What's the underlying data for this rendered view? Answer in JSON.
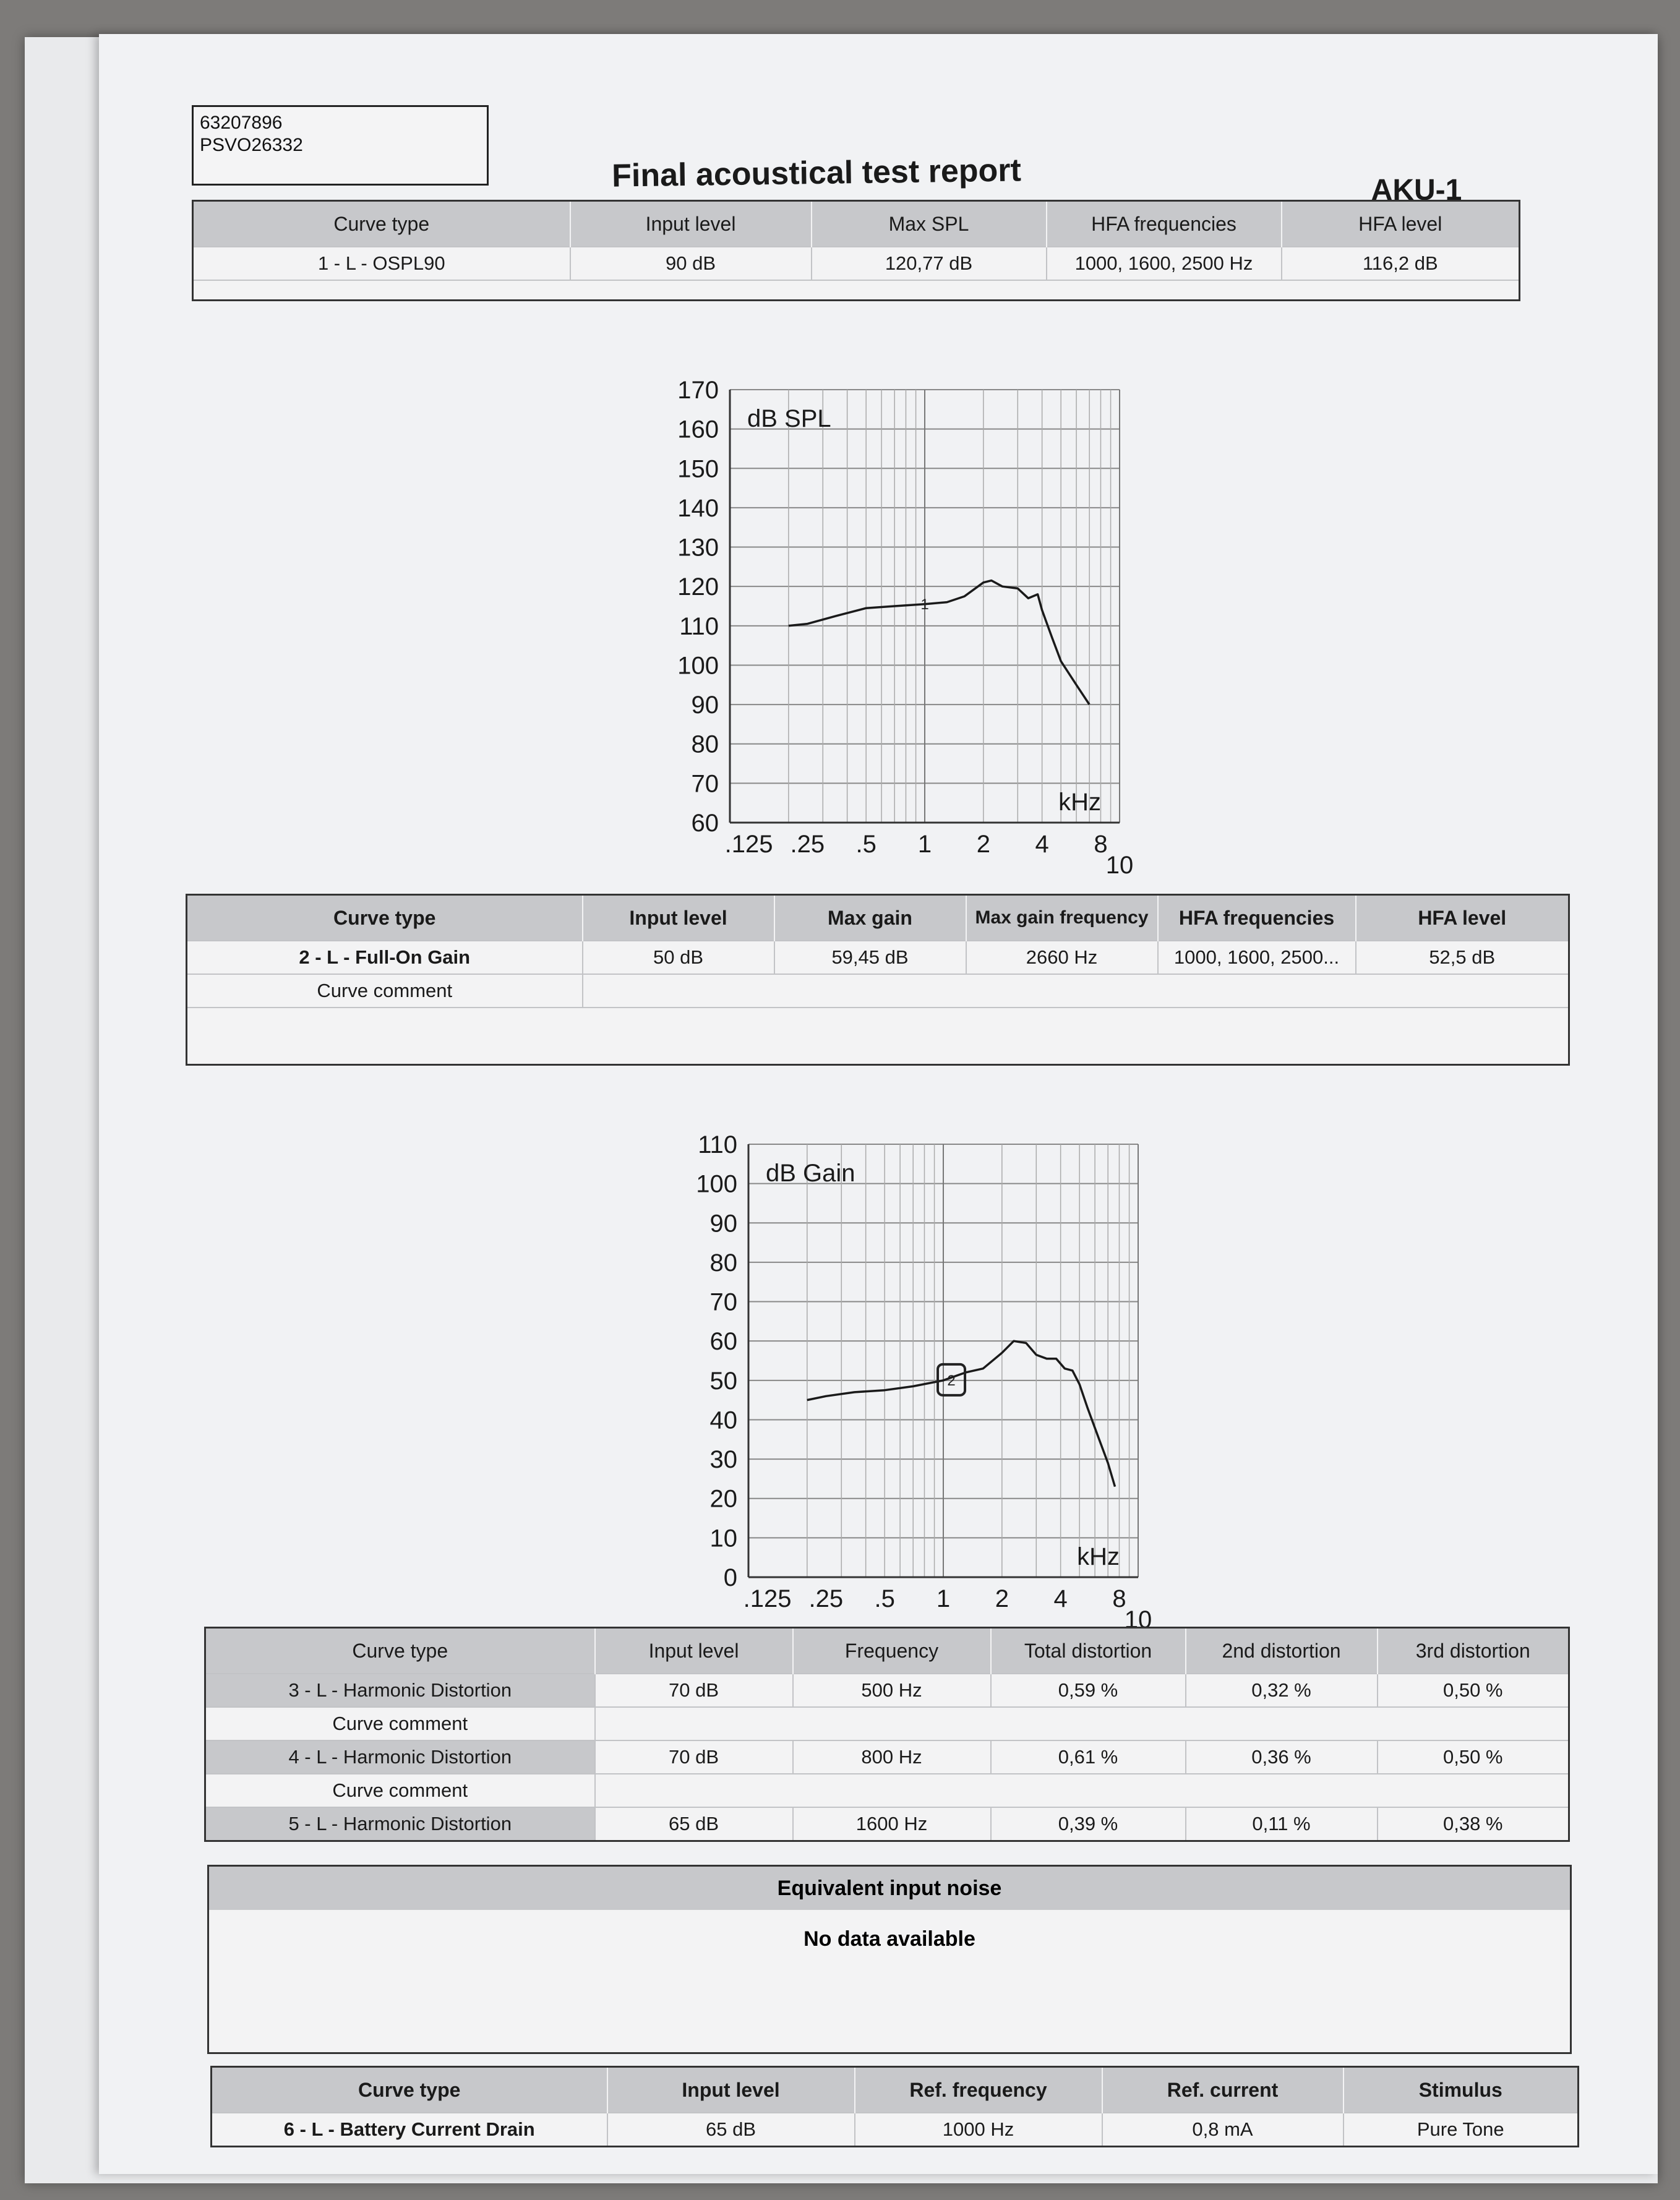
{
  "header": {
    "id_line1": "63207896",
    "id_line2": "PSVO26332",
    "title": "Final acoustical test report",
    "code": "AKU-1"
  },
  "table1": {
    "headers": [
      "Curve type",
      "Input level",
      "Max SPL",
      "HFA frequencies",
      "HFA level"
    ],
    "row": [
      "1 - L - OSPL90",
      "90 dB",
      "120,77 dB",
      "1000, 1600, 2500 Hz",
      "116,2 dB"
    ]
  },
  "table2": {
    "headers": [
      "Curve type",
      "Input level",
      "Max gain",
      "Max gain frequency",
      "HFA frequencies",
      "HFA level"
    ],
    "row": [
      "2 - L - Full-On Gain",
      "50 dB",
      "59,45 dB",
      "2660 Hz",
      "1000, 1600, 2500...",
      "52,5 dB"
    ],
    "comment_label": "Curve comment"
  },
  "table3": {
    "headers": [
      "Curve type",
      "Input level",
      "Frequency",
      "Total distortion",
      "2nd distortion",
      "3rd distortion"
    ],
    "rows": [
      [
        "3 - L - Harmonic Distortion",
        "70 dB",
        "500 Hz",
        "0,59 %",
        "0,32 %",
        "0,50 %"
      ],
      [
        "4 - L - Harmonic Distortion",
        "70 dB",
        "800 Hz",
        "0,61 %",
        "0,36 %",
        "0,50 %"
      ],
      [
        "5 - L - Harmonic Distortion",
        "65 dB",
        "1600 Hz",
        "0,39 %",
        "0,11 %",
        "0,38 %"
      ]
    ],
    "comment_label": "Curve comment"
  },
  "noise": {
    "title": "Equivalent input noise",
    "message": "No data available"
  },
  "table4": {
    "headers": [
      "Curve type",
      "Input level",
      "Ref. frequency",
      "Ref. current",
      "Stimulus"
    ],
    "row": [
      "6 - L - Battery Current Drain",
      "65 dB",
      "1000 Hz",
      "0,8 mA",
      "Pure Tone"
    ]
  },
  "chart_data": [
    {
      "type": "line",
      "ylabel": "dB SPL",
      "xlabel": "kHz",
      "xscale": "log",
      "x_ticks": [
        ".125",
        ".25",
        ".5",
        "1",
        "2",
        "4",
        "8",
        "10"
      ],
      "x_tick_values": [
        0.125,
        0.25,
        0.5,
        1,
        2,
        4,
        8,
        10
      ],
      "ylim": [
        60,
        170
      ],
      "y_ticks": [
        170,
        160,
        150,
        140,
        130,
        120,
        110,
        100,
        90,
        80,
        70,
        60
      ],
      "grid": true,
      "marker_label": "1",
      "marker_at": [
        1.0,
        115.5
      ],
      "points": [
        [
          0.2,
          110
        ],
        [
          0.25,
          110.5
        ],
        [
          0.35,
          112.5
        ],
        [
          0.5,
          114.5
        ],
        [
          0.7,
          115
        ],
        [
          1.0,
          115.5
        ],
        [
          1.3,
          116
        ],
        [
          1.6,
          117.5
        ],
        [
          2.0,
          121
        ],
        [
          2.2,
          121.5
        ],
        [
          2.5,
          120
        ],
        [
          3.0,
          119.5
        ],
        [
          3.4,
          117
        ],
        [
          3.8,
          118
        ],
        [
          4.0,
          114
        ],
        [
          4.5,
          107
        ],
        [
          5.0,
          101
        ],
        [
          6.0,
          95
        ],
        [
          7.0,
          90
        ]
      ]
    },
    {
      "type": "line",
      "ylabel": "dB Gain",
      "xlabel": "kHz",
      "xscale": "log",
      "x_ticks": [
        ".125",
        ".25",
        ".5",
        "1",
        "2",
        "4",
        "8",
        "10"
      ],
      "x_tick_values": [
        0.125,
        0.25,
        0.5,
        1,
        2,
        4,
        8,
        10
      ],
      "ylim": [
        0,
        110
      ],
      "y_ticks": [
        110,
        100,
        90,
        80,
        70,
        60,
        50,
        40,
        30,
        20,
        10,
        0
      ],
      "grid": true,
      "marker_label": "2",
      "marker_at": [
        1.1,
        50
      ],
      "points": [
        [
          0.2,
          45
        ],
        [
          0.25,
          46
        ],
        [
          0.35,
          47
        ],
        [
          0.5,
          47.5
        ],
        [
          0.7,
          48.5
        ],
        [
          1.0,
          50
        ],
        [
          1.3,
          52
        ],
        [
          1.6,
          53
        ],
        [
          2.0,
          57
        ],
        [
          2.3,
          60
        ],
        [
          2.66,
          59.5
        ],
        [
          3.0,
          56.5
        ],
        [
          3.4,
          55.5
        ],
        [
          3.8,
          55.5
        ],
        [
          4.2,
          53
        ],
        [
          4.6,
          52.5
        ],
        [
          5.0,
          49
        ],
        [
          5.5,
          43
        ],
        [
          6.2,
          36
        ],
        [
          7.0,
          29
        ],
        [
          7.6,
          23
        ]
      ]
    }
  ]
}
